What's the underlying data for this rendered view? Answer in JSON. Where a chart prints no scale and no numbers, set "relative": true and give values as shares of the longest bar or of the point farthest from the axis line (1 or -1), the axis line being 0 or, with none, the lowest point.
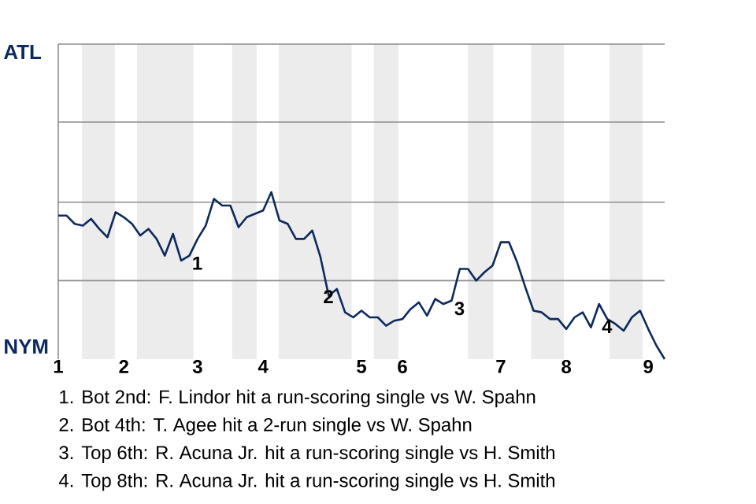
{
  "chart_data": {
    "type": "line",
    "color": "#0d2a5c",
    "relative": true,
    "categories": [
      "1",
      null,
      null,
      null,
      null,
      null,
      null,
      null,
      "2",
      null,
      null,
      null,
      null,
      null,
      null,
      null,
      null,
      "3",
      null,
      null,
      null,
      null,
      null,
      null,
      null,
      "4",
      null,
      null,
      null,
      null,
      null,
      null,
      null,
      null,
      null,
      null,
      null,
      "5",
      null,
      null,
      null,
      null,
      "6",
      null,
      null,
      null,
      null,
      null,
      null,
      null,
      null,
      null,
      null,
      null,
      "7",
      null,
      null,
      null,
      null,
      null,
      null,
      null,
      "8",
      null,
      null,
      null,
      null,
      null,
      null,
      null,
      null,
      null,
      "9",
      null,
      null
    ],
    "values": [
      0.86,
      0.86,
      0.81,
      0.8,
      0.84,
      0.78,
      0.73,
      0.88,
      0.85,
      0.81,
      0.74,
      0.78,
      0.72,
      0.62,
      0.75,
      0.59,
      0.62,
      0.72,
      0.8,
      0.96,
      0.92,
      0.92,
      0.79,
      0.85,
      0.87,
      0.89,
      1,
      0.83,
      0.81,
      0.72,
      0.72,
      0.77,
      0.61,
      0.38,
      0.42,
      0.28,
      0.25,
      0.29,
      0.25,
      0.25,
      0.2,
      0.23,
      0.24,
      0.3,
      0.34,
      0.26,
      0.36,
      0.33,
      0.35,
      0.54,
      0.54,
      0.47,
      0.52,
      0.56,
      0.7,
      0.7,
      0.58,
      0.43,
      0.29,
      0.28,
      0.24,
      0.24,
      0.18,
      0.25,
      0.28,
      0.19,
      0.33,
      0.24,
      0.21,
      0.17,
      0.25,
      0.29,
      0.18,
      0.08,
      0
    ],
    "marker": "none",
    "line_style": "solid",
    "ref_lines": [
      {
        "axis": "y",
        "value": 0.47,
        "color": "#8c8c8c"
      },
      {
        "axis": "y",
        "value": 0.94,
        "color": "#8c8c8c"
      },
      {
        "axis": "y",
        "value": 1.42,
        "color": "#8c8c8c"
      }
    ],
    "annotations": [
      "ATL",
      "NYM",
      {
        "text": "1",
        "y": 0.62
      },
      {
        "text": "2",
        "y": 0.42
      },
      {
        "text": "3",
        "y": 0.35
      },
      {
        "text": "4",
        "y": 0.24
      },
      "1. Bot 2nd: F. Lindor hit a run-scoring single vs W. Spahn",
      "2. Bot 4th: T. Agee hit a 2-run single vs W. Spahn",
      "3. Top 6th: R. Acuna Jr. hit a run-scoring single vs H. Smith",
      "4. Top 8th: R. Acuna Jr. hit a run-scoring single vs H. Smith"
    ]
  }
}
